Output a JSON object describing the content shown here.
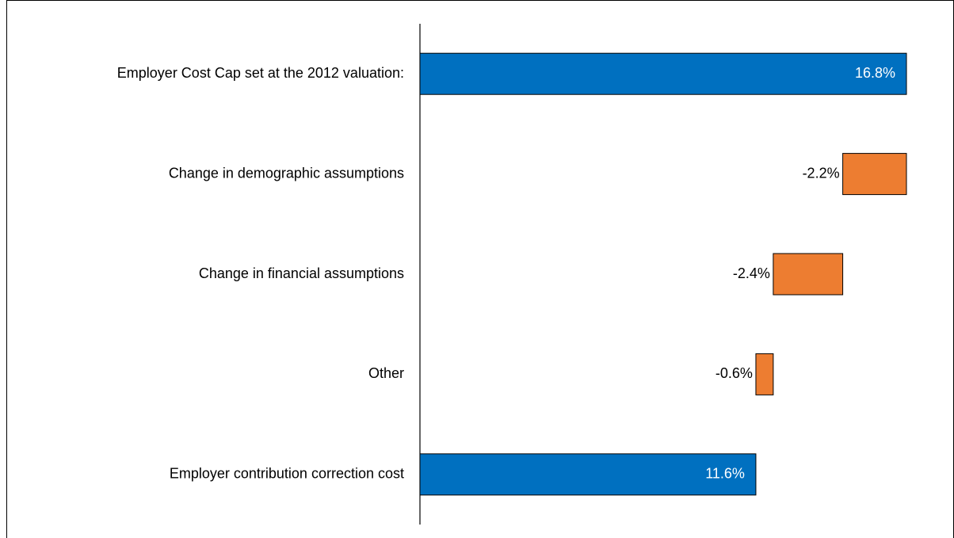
{
  "chart_data": {
    "type": "waterfall",
    "categories": [
      "Employer Cost Cap set at the 2012 valuation:",
      "Change in demographic assumptions",
      "Change in financial assumptions",
      "Other",
      "Employer contribution correction cost"
    ],
    "values": [
      16.8,
      -2.2,
      -2.4,
      -0.6,
      11.6
    ],
    "value_labels": [
      "16.8%",
      "-2.2%",
      "-2.4%",
      "-0.6%",
      "11.6%"
    ],
    "colors": [
      "#0070c0",
      "#ed7d31",
      "#ed7d31",
      "#ed7d31",
      "#0070c0"
    ],
    "xlim": [
      0,
      16.8
    ]
  }
}
